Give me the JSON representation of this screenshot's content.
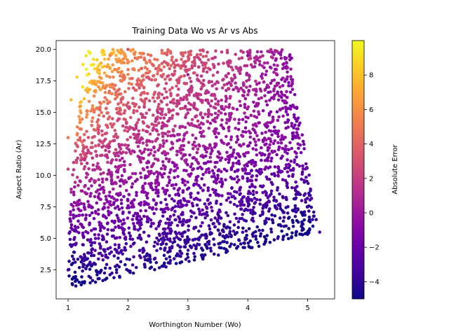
{
  "chart_data": {
    "type": "scatter",
    "title": "Training Data Wo vs Ar vs Abs",
    "xlabel": "Worthington Number (Wo)",
    "ylabel": "Aspect Ratio (Ar)",
    "colorbar_label": "Absolute Error",
    "colormap": "plasma",
    "marker_color_hint": "color encodes absolute error",
    "xlim": [
      0.8,
      5.45
    ],
    "ylim": [
      0.2,
      20.7
    ],
    "clim": [
      -5.0,
      10.0
    ],
    "xticks": [
      "1",
      "2",
      "3",
      "4",
      "5"
    ],
    "yticks": [
      "2.5",
      "5.0",
      "7.5",
      "10.0",
      "12.5",
      "15.0",
      "17.5",
      "20.0"
    ],
    "cticks": [
      "-4",
      "-2",
      "0",
      "2",
      "4",
      "6",
      "8"
    ],
    "grid": false,
    "domain": {
      "x_min": 1.0,
      "x_left_top": 1.35,
      "x_right_top": 4.75,
      "x_right_bottom": 5.2,
      "y_min": 1.0,
      "y_max": 20.0
    },
    "sampled_points": [
      {
        "wo": 1.3,
        "ar": 19.5,
        "abs": 9.2
      },
      {
        "wo": 1.25,
        "ar": 18.8,
        "abs": 9.0
      },
      {
        "wo": 1.15,
        "ar": 17.8,
        "abs": 8.6
      },
      {
        "wo": 1.05,
        "ar": 16.0,
        "abs": 7.8
      },
      {
        "wo": 1.0,
        "ar": 13.0,
        "abs": 5.0
      },
      {
        "wo": 1.5,
        "ar": 14.0,
        "abs": 4.5
      },
      {
        "wo": 1.7,
        "ar": 19.5,
        "abs": 5.5
      },
      {
        "wo": 2.0,
        "ar": 20.0,
        "abs": 3.0
      },
      {
        "wo": 1.0,
        "ar": 10.5,
        "abs": 2.0
      },
      {
        "wo": 2.5,
        "ar": 15.0,
        "abs": 1.0
      },
      {
        "wo": 3.0,
        "ar": 18.0,
        "abs": 0.3
      },
      {
        "wo": 4.0,
        "ar": 19.5,
        "abs": -0.5
      },
      {
        "wo": 4.7,
        "ar": 19.5,
        "abs": -0.8
      },
      {
        "wo": 3.5,
        "ar": 10.0,
        "abs": -1.8
      },
      {
        "wo": 2.0,
        "ar": 8.0,
        "abs": -1.0
      },
      {
        "wo": 1.0,
        "ar": 2.5,
        "abs": -3.5
      },
      {
        "wo": 1.5,
        "ar": 1.8,
        "abs": -4.3
      },
      {
        "wo": 3.0,
        "ar": 3.5,
        "abs": -4.0
      },
      {
        "wo": 4.5,
        "ar": 5.0,
        "abs": -3.6
      },
      {
        "wo": 5.2,
        "ar": 5.5,
        "abs": -3.3
      },
      {
        "wo": 4.9,
        "ar": 8.0,
        "abs": -2.8
      },
      {
        "wo": 4.8,
        "ar": 13.0,
        "abs": -1.5
      }
    ]
  }
}
